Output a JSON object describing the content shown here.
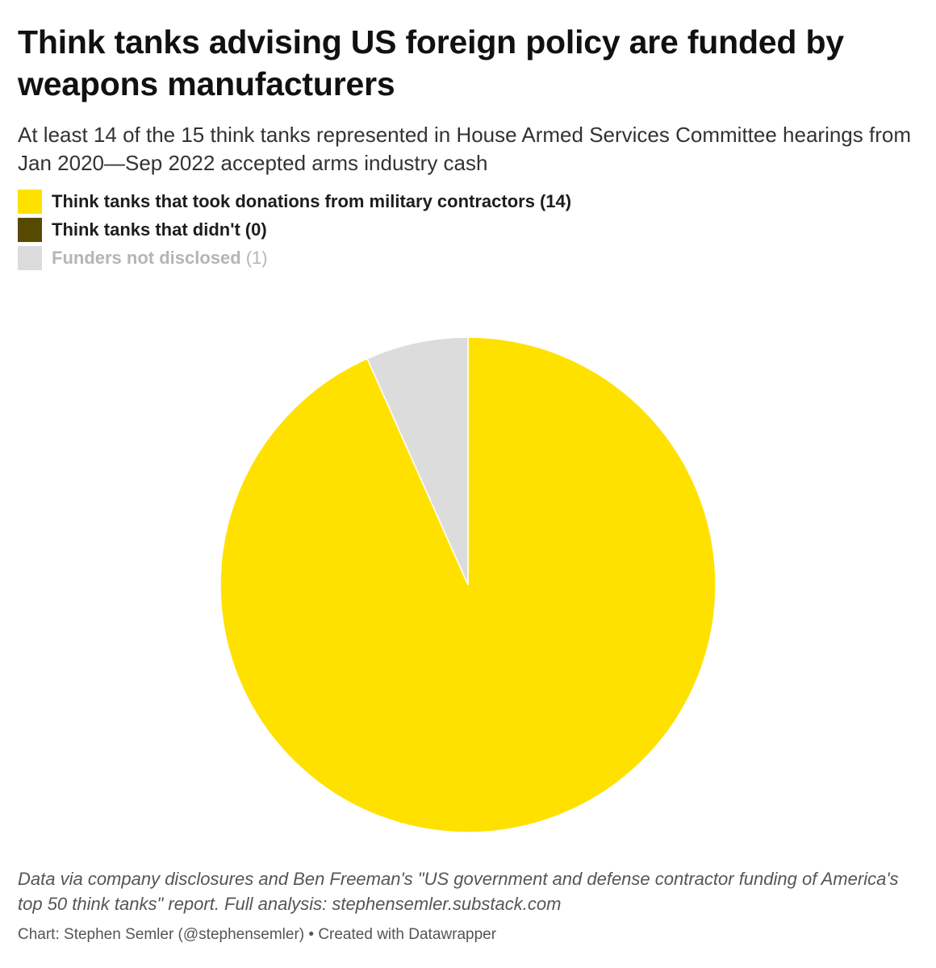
{
  "header": {
    "title": "Think tanks advising US foreign policy are funded by weapons manufacturers",
    "subtitle": "At least 14 of the 15 think tanks represented in House Armed Services Committee hearings from Jan 2020—Sep 2022 accepted arms industry cash"
  },
  "legend": {
    "items": [
      {
        "label": "Think tanks that took donations from military contractors",
        "count": "(14)",
        "color": "#ffe100",
        "text_color": "#1d1d1d"
      },
      {
        "label": "Think tanks that didn't",
        "count": "(0)",
        "color": "#574a00",
        "text_color": "#1d1d1d"
      },
      {
        "label": "Funders not disclosed",
        "count": "(1)",
        "color": "#dcdcdc",
        "text_color": "#b5b5b5"
      }
    ]
  },
  "chart_data": {
    "type": "pie",
    "categories": [
      "Think tanks that took donations from military contractors",
      "Think tanks that didn't",
      "Funders not disclosed"
    ],
    "values": [
      14,
      0,
      1
    ],
    "colors": [
      "#ffe100",
      "#574a00",
      "#dcdcdc"
    ],
    "title": "Think tanks advising US foreign policy are funded by weapons manufacturers",
    "legend": "top-left"
  },
  "footer": {
    "notes": "Data via company disclosures and Ben Freeman's \"US government and defense contractor funding of America's top 50 think tanks\" report. Full analysis: stephensemler.substack.com",
    "byline": "Chart: Stephen Semler (@stephensemler) • Created with Datawrapper"
  }
}
